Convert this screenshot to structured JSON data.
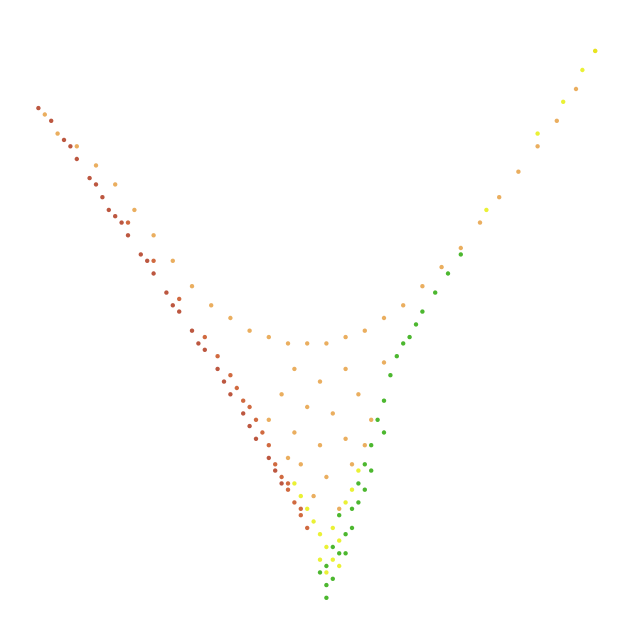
{
  "chart_data": {
    "type": "scatter",
    "title": "",
    "xlabel": "",
    "ylabel": "",
    "xlim": [
      0,
      100
    ],
    "ylim": [
      0,
      100
    ],
    "grid": false,
    "axes_visible": false,
    "legend": "none",
    "colors": {
      "dark_red": "#b03a1e",
      "red_orange": "#c8501e",
      "orange": "#e6a043",
      "yellow": "#e6ef12",
      "green": "#2daa0a"
    },
    "series": [
      {
        "color": "#b03a1e",
        "points": [
          [
            6,
            83
          ],
          [
            8,
            81
          ],
          [
            10,
            78
          ],
          [
            12,
            75
          ],
          [
            14,
            72
          ],
          [
            16,
            69
          ],
          [
            18,
            66
          ],
          [
            20,
            63
          ],
          [
            22,
            60
          ],
          [
            24,
            57
          ],
          [
            26,
            54
          ],
          [
            28,
            51
          ],
          [
            30,
            48
          ],
          [
            32,
            45
          ],
          [
            34,
            42
          ],
          [
            36,
            38
          ],
          [
            38,
            35
          ],
          [
            40,
            31
          ],
          [
            42,
            28
          ],
          [
            44,
            24
          ],
          [
            11,
            77
          ],
          [
            15,
            71
          ],
          [
            19,
            65
          ],
          [
            23,
            59
          ],
          [
            27,
            52
          ],
          [
            31,
            46
          ],
          [
            35,
            40
          ],
          [
            39,
            33
          ],
          [
            43,
            26
          ],
          [
            17,
            67
          ]
        ]
      },
      {
        "color": "#c8501e",
        "points": [
          [
            20,
            65
          ],
          [
            24,
            59
          ],
          [
            28,
            53
          ],
          [
            32,
            47
          ],
          [
            34,
            44
          ],
          [
            36,
            41
          ],
          [
            38,
            37
          ],
          [
            40,
            34
          ],
          [
            42,
            30
          ],
          [
            43,
            27
          ],
          [
            44,
            25
          ],
          [
            45,
            23
          ],
          [
            46,
            21
          ],
          [
            47,
            19
          ],
          [
            48,
            17
          ],
          [
            37,
            39
          ],
          [
            41,
            32
          ],
          [
            39,
            36
          ],
          [
            45,
            24
          ],
          [
            47,
            20
          ]
        ]
      },
      {
        "color": "#e6a043",
        "points": [
          [
            7,
            82
          ],
          [
            9,
            79
          ],
          [
            12,
            77
          ],
          [
            15,
            74
          ],
          [
            18,
            71
          ],
          [
            21,
            67
          ],
          [
            24,
            63
          ],
          [
            27,
            59
          ],
          [
            30,
            55
          ],
          [
            33,
            52
          ],
          [
            36,
            50
          ],
          [
            39,
            48
          ],
          [
            42,
            47
          ],
          [
            45,
            46
          ],
          [
            48,
            46
          ],
          [
            51,
            46
          ],
          [
            54,
            47
          ],
          [
            57,
            48
          ],
          [
            60,
            50
          ],
          [
            63,
            52
          ],
          [
            66,
            55
          ],
          [
            69,
            58
          ],
          [
            72,
            61
          ],
          [
            75,
            65
          ],
          [
            78,
            69
          ],
          [
            81,
            73
          ],
          [
            84,
            77
          ],
          [
            87,
            81
          ],
          [
            90,
            86
          ],
          [
            93,
            92
          ],
          [
            46,
            42
          ],
          [
            50,
            40
          ],
          [
            54,
            42
          ],
          [
            44,
            38
          ],
          [
            48,
            36
          ],
          [
            52,
            35
          ],
          [
            56,
            38
          ],
          [
            46,
            32
          ],
          [
            50,
            30
          ],
          [
            54,
            31
          ],
          [
            58,
            34
          ],
          [
            42,
            34
          ],
          [
            47,
            27
          ],
          [
            51,
            25
          ],
          [
            55,
            27
          ],
          [
            49,
            22
          ],
          [
            53,
            20
          ],
          [
            45,
            28
          ],
          [
            57,
            30
          ],
          [
            60,
            43
          ]
        ]
      },
      {
        "color": "#e6ef12",
        "points": [
          [
            46,
            24
          ],
          [
            47,
            22
          ],
          [
            48,
            20
          ],
          [
            49,
            18
          ],
          [
            50,
            16
          ],
          [
            51,
            14
          ],
          [
            52,
            12
          ],
          [
            50,
            12
          ],
          [
            51,
            10
          ],
          [
            52,
            17
          ],
          [
            53,
            15
          ],
          [
            54,
            21
          ],
          [
            55,
            23
          ],
          [
            56,
            26
          ],
          [
            84,
            79
          ],
          [
            88,
            84
          ],
          [
            91,
            89
          ],
          [
            93,
            92
          ],
          [
            76,
            67
          ],
          [
            53,
            11
          ]
        ]
      },
      {
        "color": "#2daa0a",
        "points": [
          [
            50,
            10
          ],
          [
            51,
            11
          ],
          [
            52,
            9
          ],
          [
            53,
            13
          ],
          [
            54,
            16
          ],
          [
            55,
            20
          ],
          [
            56,
            24
          ],
          [
            57,
            27
          ],
          [
            58,
            30
          ],
          [
            59,
            34
          ],
          [
            60,
            37
          ],
          [
            61,
            41
          ],
          [
            62,
            44
          ],
          [
            64,
            47
          ],
          [
            66,
            51
          ],
          [
            68,
            54
          ],
          [
            70,
            57
          ],
          [
            72,
            60
          ],
          [
            53,
            19
          ],
          [
            55,
            17
          ],
          [
            56,
            21
          ],
          [
            57,
            23
          ],
          [
            54,
            13
          ],
          [
            52,
            14
          ],
          [
            58,
            26
          ],
          [
            51,
            6
          ],
          [
            51,
            8
          ],
          [
            60,
            32
          ],
          [
            63,
            46
          ],
          [
            65,
            49
          ]
        ]
      }
    ]
  }
}
